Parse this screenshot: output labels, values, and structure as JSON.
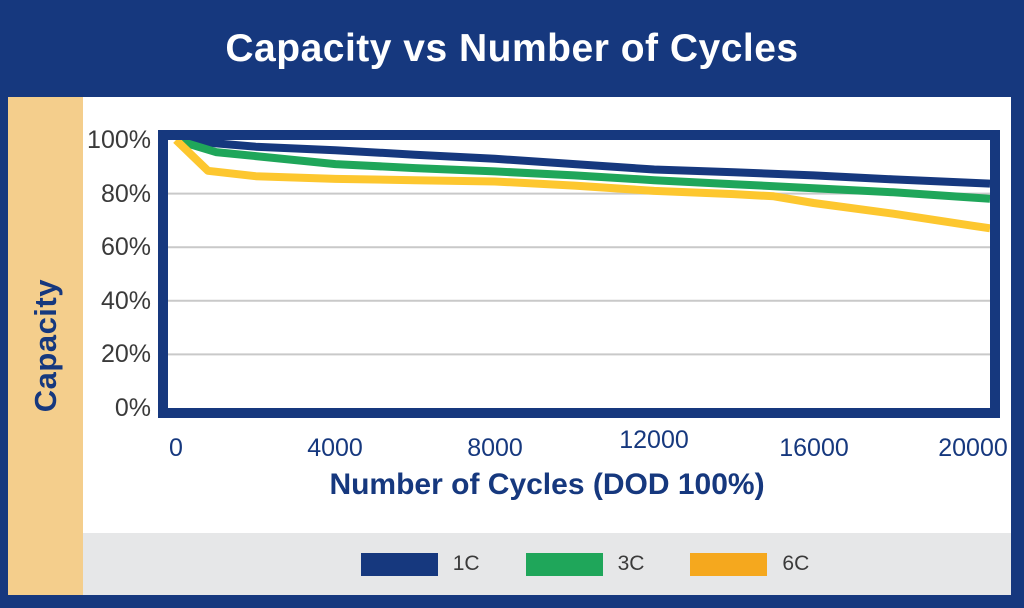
{
  "header": {
    "title": "Capacity vs Number of Cycles"
  },
  "colors": {
    "navy": "#16387E",
    "tan_strip": "#F4CE8C",
    "legend_bar_bg": "#E6E7E8",
    "gridline": "#C9C9C9",
    "white": "#FFFFFF",
    "tick_text": "#3A3A3A"
  },
  "chart_data": {
    "type": "line",
    "title": "Capacity vs Number of Cycles",
    "xlabel": "Number of Cycles (DOD 100%)",
    "ylabel": "Capacity",
    "xlim": [
      0,
      20000
    ],
    "ylim": [
      0,
      100
    ],
    "x_ticks": [
      "0",
      "4000",
      "8000",
      "12000",
      "16000",
      "20000"
    ],
    "y_ticks": [
      "100%",
      "80%",
      "60%",
      "40%",
      "20%",
      "0%"
    ],
    "grid": "horizontal-only",
    "legend_position": "bottom",
    "series": [
      {
        "name": "1C",
        "color": "#16387E",
        "legend_color": "#16387E",
        "x": [
          0,
          2000,
          4000,
          6000,
          8000,
          10000,
          12000,
          14000,
          16000,
          18000,
          20000
        ],
        "y": [
          100,
          97.5,
          96.2,
          94.5,
          93,
          91,
          89,
          88,
          86.8,
          85.3,
          84
        ]
      },
      {
        "name": "3C",
        "color": "#1FA65A",
        "legend_color": "#1FA65A",
        "x": [
          0,
          1000,
          2000,
          4000,
          6000,
          8000,
          10000,
          12000,
          14000,
          16000,
          18000,
          20000
        ],
        "y": [
          100,
          95.5,
          94,
          91,
          89.5,
          88.3,
          86.8,
          85,
          83.5,
          82,
          80.5,
          78.5
        ]
      },
      {
        "name": "6C",
        "color": "#FDC72F",
        "legend_color": "#F5A81E",
        "x": [
          0,
          800,
          2000,
          4000,
          6000,
          8000,
          10000,
          12000,
          14000,
          15000,
          16000,
          18000,
          20000
        ],
        "y": [
          100,
          88.5,
          86.5,
          85.5,
          85,
          84.5,
          83,
          81,
          79.8,
          79,
          76.5,
          72.5,
          68
        ]
      }
    ]
  }
}
